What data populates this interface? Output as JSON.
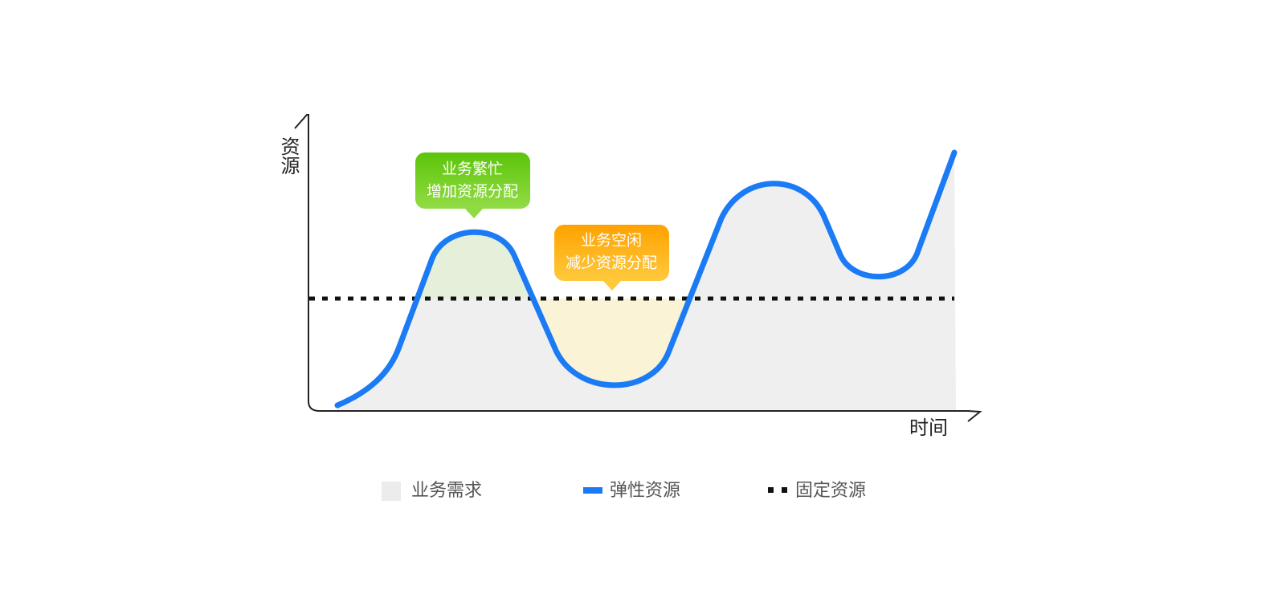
{
  "axes": {
    "y_label": "资源",
    "x_label": "时间"
  },
  "callouts": [
    {
      "lines": [
        "业务繁忙",
        "增加资源分配"
      ]
    },
    {
      "lines": [
        "业务空闲",
        "减少资源分配"
      ]
    }
  ],
  "legend": [
    "业务需求",
    "弹性资源",
    "固定资源"
  ]
}
